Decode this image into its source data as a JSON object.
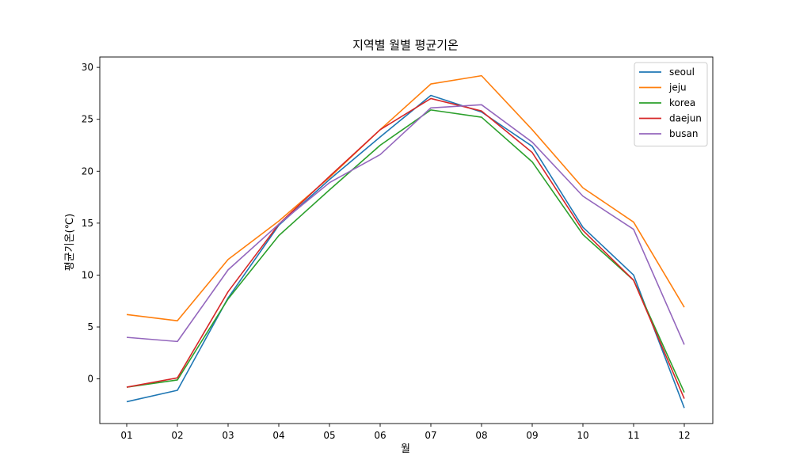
{
  "chart_data": {
    "type": "line",
    "title": "지역별 월별 평균기온",
    "xlabel": "월",
    "ylabel": "평균기온(℃)",
    "categories": [
      "01",
      "02",
      "03",
      "04",
      "05",
      "06",
      "07",
      "08",
      "09",
      "10",
      "11",
      "12"
    ],
    "ylim": [
      -4.3,
      31.0
    ],
    "yticks": [
      0,
      5,
      10,
      15,
      20,
      25,
      30
    ],
    "grid": false,
    "legend_position": "top-right",
    "series": [
      {
        "name": "seoul",
        "color": "#1f77b4",
        "values": [
          -2.2,
          -1.1,
          7.8,
          14.8,
          19.2,
          23.3,
          27.3,
          25.7,
          22.4,
          14.6,
          10.0,
          -2.8
        ]
      },
      {
        "name": "jeju",
        "color": "#ff7f0e",
        "values": [
          6.2,
          5.6,
          11.5,
          15.2,
          19.4,
          24.0,
          28.4,
          29.2,
          24.0,
          18.4,
          15.1,
          6.9
        ]
      },
      {
        "name": "korea",
        "color": "#2ca02c",
        "values": [
          -0.8,
          -0.1,
          7.7,
          13.8,
          18.2,
          22.5,
          25.9,
          25.2,
          20.9,
          13.9,
          9.5,
          -1.3
        ]
      },
      {
        "name": "daejun",
        "color": "#d62728",
        "values": [
          -0.8,
          0.1,
          8.4,
          14.9,
          19.5,
          24.0,
          27.0,
          25.8,
          21.8,
          14.3,
          9.5,
          -1.9
        ]
      },
      {
        "name": "busan",
        "color": "#9467bd",
        "values": [
          4.0,
          3.6,
          10.5,
          14.9,
          18.9,
          21.6,
          26.1,
          26.4,
          22.8,
          17.6,
          14.4,
          3.3
        ]
      }
    ]
  }
}
